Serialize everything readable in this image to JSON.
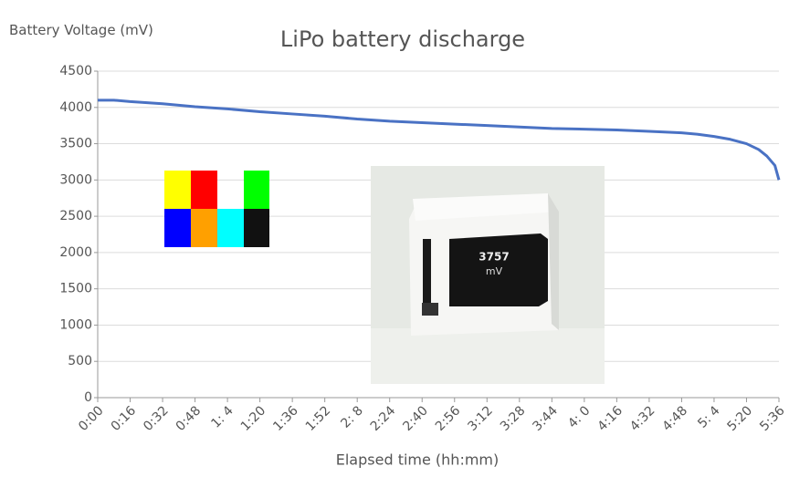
{
  "chart_data": {
    "type": "line",
    "title": "LiPo battery discharge",
    "y_label": "Battery Voltage (mV)",
    "x_label": "Elapsed time (hh:mm)",
    "x": [
      0,
      8,
      16,
      32,
      48,
      64,
      80,
      96,
      112,
      128,
      144,
      160,
      176,
      192,
      208,
      224,
      240,
      256,
      272,
      288,
      296,
      304,
      312,
      320,
      326,
      330,
      334,
      336
    ],
    "values": [
      4100,
      4100,
      4080,
      4050,
      4010,
      3980,
      3940,
      3910,
      3880,
      3840,
      3810,
      3790,
      3770,
      3750,
      3730,
      3710,
      3700,
      3690,
      3670,
      3650,
      3630,
      3600,
      3560,
      3500,
      3420,
      3330,
      3200,
      3000
    ],
    "color": "#4a72c4",
    "xlim": [
      0,
      336
    ],
    "xticks": [
      {
        "value": 0,
        "label": "0:00"
      },
      {
        "value": 16,
        "label": "0:16"
      },
      {
        "value": 32,
        "label": "0:32"
      },
      {
        "value": 48,
        "label": "0:48"
      },
      {
        "value": 64,
        "label": "1: 4"
      },
      {
        "value": 80,
        "label": "1:20"
      },
      {
        "value": 96,
        "label": "1:36"
      },
      {
        "value": 112,
        "label": "1:52"
      },
      {
        "value": 128,
        "label": "2: 8"
      },
      {
        "value": 144,
        "label": "2:24"
      },
      {
        "value": 160,
        "label": "2:40"
      },
      {
        "value": 176,
        "label": "2:56"
      },
      {
        "value": 192,
        "label": "3:12"
      },
      {
        "value": 208,
        "label": "3:28"
      },
      {
        "value": 224,
        "label": "3:44"
      },
      {
        "value": 240,
        "label": "4: 0"
      },
      {
        "value": 256,
        "label": "4:16"
      },
      {
        "value": 272,
        "label": "4:32"
      },
      {
        "value": 288,
        "label": "4:48"
      },
      {
        "value": 304,
        "label": "5: 4"
      },
      {
        "value": 320,
        "label": "5:20"
      },
      {
        "value": 336,
        "label": "5:36"
      }
    ],
    "ylim": [
      0,
      4500
    ],
    "yticks": [
      0,
      500,
      1000,
      1500,
      2000,
      2500,
      3000,
      3500,
      4000,
      4500
    ],
    "grid": true,
    "inset_text": [
      "3757",
      "mV"
    ]
  }
}
